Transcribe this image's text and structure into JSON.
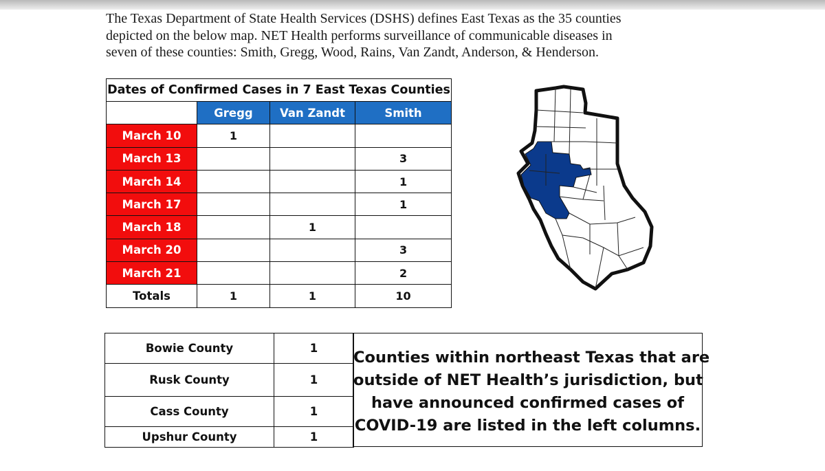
{
  "intro": {
    "lines": [
      "The Texas Department of State Health Services (DSHS) defines East Texas as the 35 counties",
      "depicted on the below map.  NET Health performs surveillance of communicable diseases in",
      "seven of these counties: Smith, Gregg, Wood, Rains, Van Zandt, Anderson, & Henderson."
    ]
  },
  "cases_table": {
    "title": "Dates of Confirmed Cases in 7 East Texas Counties",
    "headers": [
      "Gregg",
      "Van Zandt",
      "Smith"
    ],
    "rows": [
      {
        "date": "March 10",
        "gregg": "1",
        "van_zandt": "",
        "smith": ""
      },
      {
        "date": "March 13",
        "gregg": "",
        "van_zandt": "",
        "smith": "3"
      },
      {
        "date": "March 14",
        "gregg": "",
        "van_zandt": "",
        "smith": "1"
      },
      {
        "date": "March 17",
        "gregg": "",
        "van_zandt": "",
        "smith": "1"
      },
      {
        "date": "March 18",
        "gregg": "",
        "van_zandt": "1",
        "smith": ""
      },
      {
        "date": "March 20",
        "gregg": "",
        "van_zandt": "",
        "smith": "3"
      },
      {
        "date": "March 21",
        "gregg": "",
        "van_zandt": "",
        "smith": "2"
      }
    ],
    "totals": {
      "label": "Totals",
      "gregg": "1",
      "van_zandt": "1",
      "smith": "10"
    }
  },
  "outside_table": {
    "rows": [
      {
        "county": "Bowie County",
        "count": "1"
      },
      {
        "county": "Rusk County",
        "count": "1"
      },
      {
        "county": "Cass County",
        "count": "1"
      },
      {
        "county": "Upshur County",
        "count": "1"
      }
    ]
  },
  "note": {
    "lines": [
      "Counties within northeast Texas that are",
      "outside of NET Health’s jurisdiction, but",
      "have announced confirmed cases of",
      "COVID-19 are listed in the left columns."
    ]
  },
  "map": {
    "highlight_color": "#0b3a8c",
    "outline_color": "#111111"
  }
}
